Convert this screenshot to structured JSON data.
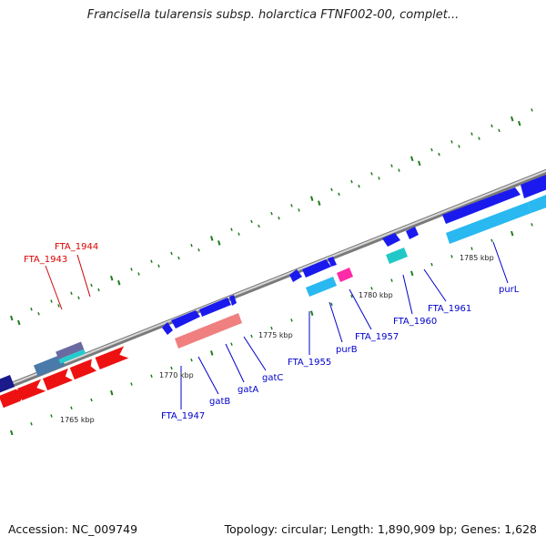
{
  "header": {
    "title": "Francisella tularensis subsp. holarctica FTNF002-00, complet..."
  },
  "footer": {
    "accession": "Accession: NC_009749",
    "summary": "Topology: circular; Length: 1,890,909 bp; Genes: 1,628"
  },
  "colors": {
    "backbone": "#8c8c8c",
    "tick": "#1e7d1e",
    "forward_gene": "#1a1aff",
    "reverse_gene": "#ff1a1a",
    "cyan_gene": "#2ab8f0",
    "pink_gene": "#ff2aa8",
    "teal_gene": "#20c8c8",
    "label_blue": "#0000cc",
    "label_red": "#dd0000"
  },
  "kbp_labels": [
    "1765 kbp",
    "1770 kbp",
    "1775 kbp",
    "1780 kbp",
    "1785 kbp"
  ],
  "gene_labels": [
    {
      "text": "FTA_1944",
      "color": "red"
    },
    {
      "text": "FTA_1943",
      "color": "red"
    },
    {
      "text": "FTA_1947",
      "color": "blue"
    },
    {
      "text": "gatB",
      "color": "blue"
    },
    {
      "text": "gatA",
      "color": "blue"
    },
    {
      "text": "gatC",
      "color": "blue"
    },
    {
      "text": "FTA_1955",
      "color": "blue"
    },
    {
      "text": "purB",
      "color": "blue"
    },
    {
      "text": "FTA_1957",
      "color": "blue"
    },
    {
      "text": "FTA_1960",
      "color": "blue"
    },
    {
      "text": "FTA_1961",
      "color": "blue"
    },
    {
      "text": "purL",
      "color": "blue"
    }
  ]
}
